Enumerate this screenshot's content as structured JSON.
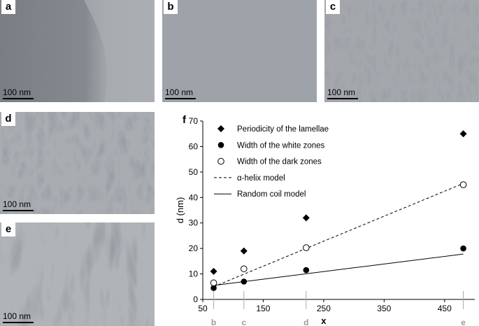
{
  "panels": [
    {
      "letter": "a",
      "scale": "100 nm"
    },
    {
      "letter": "b",
      "scale": "100 nm"
    },
    {
      "letter": "c",
      "scale": "100 nm"
    },
    {
      "letter": "d",
      "scale": "100 nm"
    },
    {
      "letter": "e",
      "scale": "100 nm"
    }
  ],
  "chart_data": {
    "type": "scatter",
    "panel_letter": "f",
    "title": "",
    "xlabel": "x",
    "ylabel": "d (nm)",
    "xlim": [
      50,
      500
    ],
    "ylim": [
      0,
      70
    ],
    "xticks": [
      50,
      150,
      250,
      350,
      450
    ],
    "yticks": [
      0,
      10,
      20,
      30,
      40,
      50,
      60,
      70
    ],
    "sample_markers": [
      {
        "x": 68,
        "label": "b"
      },
      {
        "x": 118,
        "label": "c"
      },
      {
        "x": 221,
        "label": "d"
      },
      {
        "x": 481,
        "label": "e"
      }
    ],
    "series": [
      {
        "name": "Periodicity of the lamellae",
        "marker": "diamond",
        "x": [
          68,
          118,
          221,
          481
        ],
        "y": [
          11,
          19,
          32,
          65
        ]
      },
      {
        "name": "Width of the white zones",
        "marker": "filled-circle",
        "x": [
          68,
          118,
          221,
          481
        ],
        "y": [
          4.5,
          7,
          11.5,
          20
        ]
      },
      {
        "name": "Width of the dark zones",
        "marker": "open-circle",
        "x": [
          68,
          118,
          221,
          481
        ],
        "y": [
          6.5,
          12,
          20.3,
          45
        ]
      },
      {
        "name": "α-helix model",
        "line": "dashed",
        "x": [
          68,
          481
        ],
        "y": [
          5,
          45.5
        ]
      },
      {
        "name": "Random coil model",
        "line": "solid",
        "x": [
          68,
          481
        ],
        "y": [
          5.5,
          17.8
        ]
      }
    ],
    "legend_position": "top-left",
    "grid": false
  }
}
